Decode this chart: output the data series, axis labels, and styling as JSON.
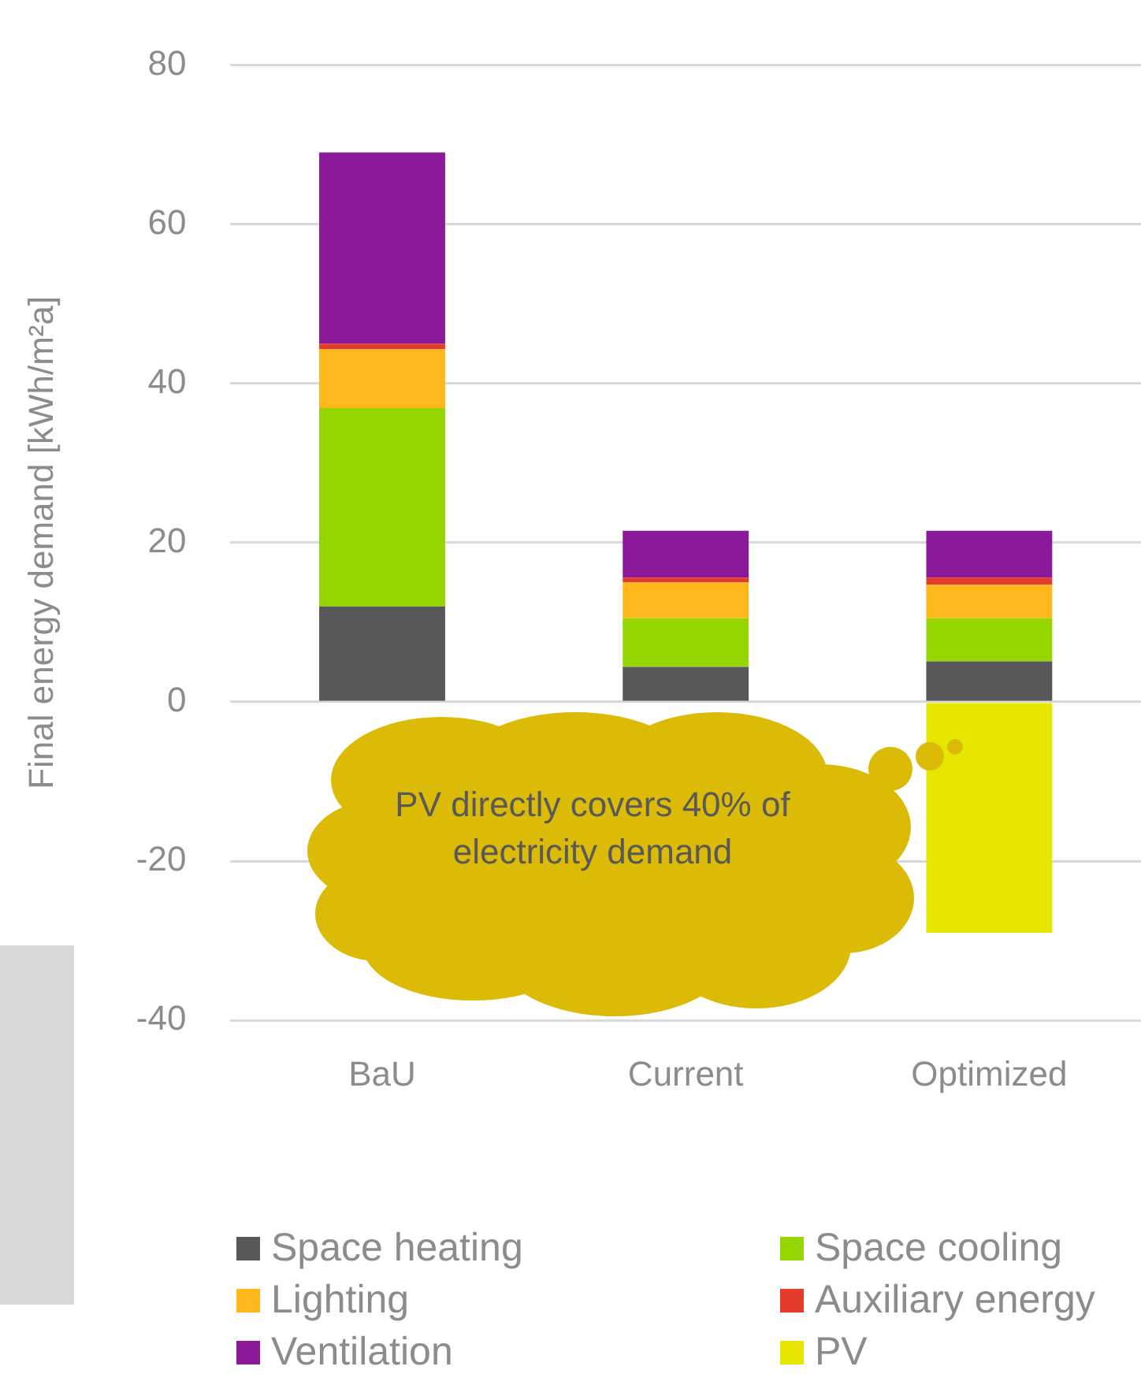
{
  "chart_data": {
    "type": "bar",
    "stacked": true,
    "ylabel": "Final energy demand [kWh/m²a]",
    "categories": [
      "BaU",
      "Current",
      "Optimized"
    ],
    "series": [
      {
        "name": "Space heating",
        "color": "#58585a",
        "values": [
          12.0,
          4.4,
          5.1
        ]
      },
      {
        "name": "Space cooling",
        "color": "#96d600",
        "values": [
          24.9,
          6.1,
          5.4
        ]
      },
      {
        "name": "Lighting",
        "color": "#ffb81c",
        "values": [
          7.4,
          4.5,
          4.2
        ]
      },
      {
        "name": "Auxiliary energy",
        "color": "#e53c2e",
        "values": [
          0.7,
          0.6,
          0.9
        ]
      },
      {
        "name": "Ventilation",
        "color": "#8a1a9a",
        "values": [
          24.0,
          5.9,
          5.9
        ]
      },
      {
        "name": "PV",
        "color": "#e6e600",
        "values": [
          null,
          null,
          -29.0
        ]
      }
    ],
    "ylim": [
      -40,
      80
    ],
    "yticks": [
      -40,
      -20,
      0,
      20,
      40,
      60,
      80
    ],
    "grid": "y",
    "legend": "bottom",
    "annotations": [
      "PV directly covers 40% of electricity demand"
    ]
  }
}
